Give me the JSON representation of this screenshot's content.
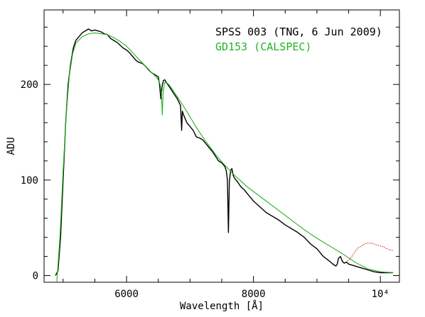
{
  "chart_data": {
    "type": "line",
    "title": "",
    "xlabel": "Wavelength [Å]",
    "ylabel": "ADU",
    "xlim": [
      4700,
      10300
    ],
    "ylim": [
      -7,
      278
    ],
    "x_ticks": [
      {
        "value": 6000,
        "label": "6000"
      },
      {
        "value": 8000,
        "label": "8000"
      },
      {
        "value": 10000,
        "label": "10⁴"
      }
    ],
    "y_ticks": [
      {
        "value": 0,
        "label": "0"
      },
      {
        "value": 100,
        "label": "100"
      },
      {
        "value": 200,
        "label": "200"
      }
    ],
    "grid": false,
    "legend_position": "top-right",
    "legend": [
      {
        "label": "SPSS 003 (TNG, 6 Jun 2009)",
        "color": "#000000"
      },
      {
        "label": "GD153  (CALSPEC)",
        "color": "#22b522"
      }
    ],
    "series": [
      {
        "name": "SPSS 003 (TNG, 6 Jun 2009)",
        "color": "#000000",
        "x": [
          4880,
          4920,
          4960,
          5000,
          5040,
          5080,
          5120,
          5160,
          5200,
          5250,
          5300,
          5350,
          5400,
          5450,
          5500,
          5550,
          5600,
          5650,
          5700,
          5750,
          5800,
          5850,
          5900,
          5950,
          6000,
          6050,
          6100,
          6150,
          6200,
          6250,
          6300,
          6350,
          6400,
          6450,
          6500,
          6520,
          6540,
          6560,
          6580,
          6600,
          6620,
          6650,
          6700,
          6750,
          6800,
          6850,
          6868,
          6880,
          6900,
          6950,
          7000,
          7050,
          7100,
          7150,
          7200,
          7250,
          7300,
          7350,
          7400,
          7450,
          7500,
          7550,
          7570,
          7590,
          7605,
          7620,
          7640,
          7660,
          7680,
          7700,
          7750,
          7800,
          7850,
          7900,
          7950,
          8000,
          8100,
          8200,
          8300,
          8400,
          8500,
          8600,
          8700,
          8800,
          8900,
          9000,
          9100,
          9200,
          9250,
          9300,
          9320,
          9340,
          9370,
          9400,
          9430,
          9470,
          9500,
          9600,
          9700,
          9800,
          9900,
          10000,
          10100,
          10200
        ],
        "y": [
          0,
          5,
          40,
          100,
          160,
          200,
          222,
          238,
          246,
          250,
          254,
          256,
          258,
          256,
          257,
          256,
          255,
          253,
          252,
          248,
          246,
          244,
          241,
          238,
          236,
          233,
          229,
          225,
          223,
          222,
          219,
          215,
          212,
          210,
          208,
          200,
          185,
          198,
          204,
          205,
          203,
          200,
          195,
          190,
          185,
          178,
          152,
          172,
          168,
          160,
          156,
          152,
          145,
          144,
          142,
          138,
          134,
          130,
          125,
          120,
          118,
          114,
          110,
          100,
          45,
          98,
          110,
          112,
          105,
          102,
          98,
          93,
          90,
          86,
          82,
          78,
          72,
          66,
          62,
          58,
          53,
          49,
          45,
          40,
          33,
          28,
          20,
          15,
          12,
          10,
          12,
          18,
          20,
          15,
          13,
          14,
          12,
          10,
          8,
          6,
          4,
          3,
          3,
          3
        ]
      },
      {
        "name": "SPSS 003 (TNG, 6 Jun 2009) red end",
        "color": "#e02020",
        "x": [
          9450,
          9500,
          9550,
          9600,
          9650,
          9700,
          9750,
          9800,
          9850,
          9900,
          9950,
          10000,
          10050,
          10100,
          10150,
          10200
        ],
        "y": [
          14,
          16,
          20,
          25,
          29,
          31,
          33,
          34,
          34,
          33,
          32,
          31,
          30,
          28,
          27,
          26
        ]
      },
      {
        "name": "GD153  (CALSPEC)",
        "color": "#22b522",
        "x": [
          4900,
          4950,
          5000,
          5050,
          5100,
          5150,
          5200,
          5300,
          5400,
          5500,
          5600,
          5700,
          5800,
          5900,
          6000,
          6100,
          6200,
          6300,
          6400,
          6450,
          6500,
          6530,
          6550,
          6563,
          6575,
          6600,
          6650,
          6700,
          6800,
          6900,
          7000,
          7100,
          7200,
          7300,
          7400,
          7500,
          7600,
          7700,
          7800,
          7900,
          8000,
          8200,
          8400,
          8600,
          8800,
          9000,
          9200,
          9400,
          9600,
          9800,
          10000,
          10200
        ],
        "y": [
          -7,
          40,
          110,
          170,
          210,
          232,
          243,
          250,
          253,
          254,
          253,
          252,
          249,
          245,
          240,
          233,
          226,
          219,
          212,
          209,
          205,
          200,
          190,
          168,
          190,
          202,
          201,
          197,
          187,
          177,
          166,
          155,
          145,
          136,
          127,
          119,
          112,
          105,
          99,
          93,
          88,
          78,
          68,
          58,
          48,
          39,
          31,
          23,
          14,
          7,
          4,
          3
        ]
      }
    ]
  }
}
